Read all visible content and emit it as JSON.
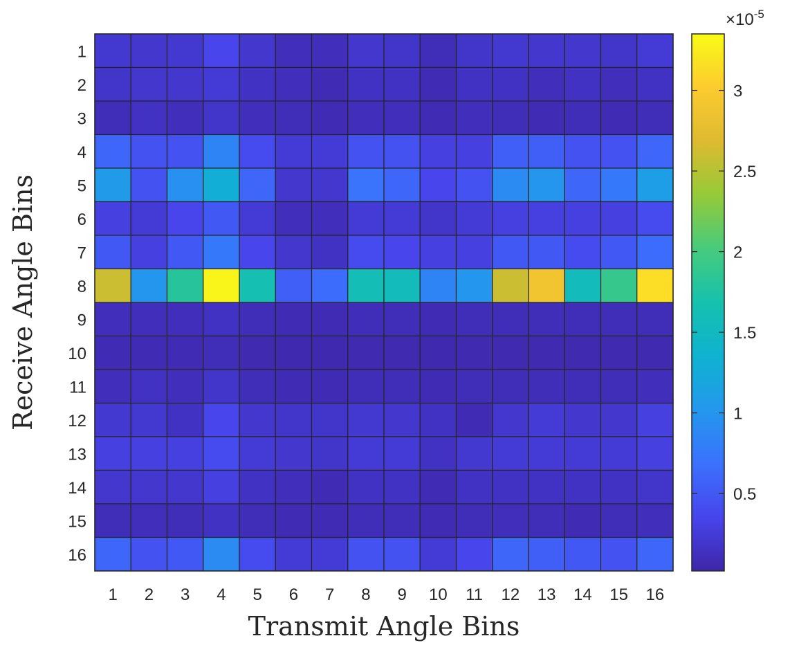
{
  "chart_data": {
    "type": "heatmap",
    "xlabel": "Transmit Angle Bins",
    "ylabel": "Receive Angle Bins",
    "x_categories": [
      "1",
      "2",
      "3",
      "4",
      "5",
      "6",
      "7",
      "8",
      "9",
      "10",
      "11",
      "12",
      "13",
      "14",
      "15",
      "16"
    ],
    "y_categories": [
      "1",
      "2",
      "3",
      "4",
      "5",
      "6",
      "7",
      "8",
      "9",
      "10",
      "11",
      "12",
      "13",
      "14",
      "15",
      "16"
    ],
    "values_scale_exponent": "-5",
    "colorbar": {
      "range": [
        0.02,
        3.35
      ],
      "ticks": [
        {
          "value": 0.5,
          "label": "0.5"
        },
        {
          "value": 1,
          "label": "1"
        },
        {
          "value": 1.5,
          "label": "1.5"
        },
        {
          "value": 2,
          "label": "2"
        },
        {
          "value": 2.5,
          "label": "2.5"
        },
        {
          "value": 3,
          "label": "3"
        }
      ]
    },
    "colormap": "parula",
    "values": [
      [
        0.22,
        0.2,
        0.22,
        0.35,
        0.2,
        0.12,
        0.12,
        0.2,
        0.18,
        0.1,
        0.18,
        0.22,
        0.2,
        0.2,
        0.18,
        0.25
      ],
      [
        0.18,
        0.2,
        0.2,
        0.25,
        0.15,
        0.12,
        0.08,
        0.15,
        0.15,
        0.08,
        0.15,
        0.15,
        0.12,
        0.15,
        0.12,
        0.15
      ],
      [
        0.1,
        0.15,
        0.12,
        0.18,
        0.12,
        0.1,
        0.08,
        0.12,
        0.12,
        0.08,
        0.12,
        0.1,
        0.08,
        0.1,
        0.08,
        0.1
      ],
      [
        0.6,
        0.45,
        0.45,
        0.85,
        0.4,
        0.25,
        0.25,
        0.45,
        0.45,
        0.3,
        0.3,
        0.55,
        0.55,
        0.45,
        0.45,
        0.6
      ],
      [
        1.05,
        0.45,
        0.95,
        1.3,
        0.6,
        0.2,
        0.2,
        0.7,
        0.6,
        0.35,
        0.45,
        0.9,
        1.0,
        0.6,
        0.75,
        1.1
      ],
      [
        0.3,
        0.25,
        0.35,
        0.5,
        0.25,
        0.12,
        0.12,
        0.25,
        0.25,
        0.18,
        0.25,
        0.3,
        0.3,
        0.3,
        0.3,
        0.4
      ],
      [
        0.5,
        0.3,
        0.5,
        0.75,
        0.35,
        0.2,
        0.15,
        0.4,
        0.35,
        0.3,
        0.3,
        0.5,
        0.5,
        0.4,
        0.5,
        0.65
      ],
      [
        2.6,
        1.0,
        1.8,
        3.3,
        1.65,
        0.55,
        0.65,
        1.6,
        1.55,
        0.85,
        1.0,
        2.6,
        2.9,
        1.55,
        1.9,
        3.15
      ],
      [
        0.12,
        0.12,
        0.12,
        0.15,
        0.1,
        0.08,
        0.08,
        0.1,
        0.1,
        0.08,
        0.1,
        0.1,
        0.1,
        0.1,
        0.1,
        0.1
      ],
      [
        0.08,
        0.08,
        0.08,
        0.1,
        0.06,
        0.05,
        0.05,
        0.06,
        0.06,
        0.05,
        0.06,
        0.06,
        0.06,
        0.06,
        0.06,
        0.06
      ],
      [
        0.12,
        0.15,
        0.12,
        0.18,
        0.1,
        0.08,
        0.08,
        0.1,
        0.1,
        0.08,
        0.1,
        0.1,
        0.1,
        0.1,
        0.1,
        0.12
      ],
      [
        0.22,
        0.22,
        0.15,
        0.35,
        0.2,
        0.18,
        0.18,
        0.22,
        0.2,
        0.15,
        0.08,
        0.2,
        0.25,
        0.2,
        0.2,
        0.3
      ],
      [
        0.3,
        0.3,
        0.3,
        0.4,
        0.25,
        0.2,
        0.18,
        0.25,
        0.25,
        0.15,
        0.22,
        0.25,
        0.25,
        0.25,
        0.25,
        0.3
      ],
      [
        0.2,
        0.2,
        0.2,
        0.3,
        0.15,
        0.12,
        0.08,
        0.15,
        0.15,
        0.08,
        0.15,
        0.15,
        0.15,
        0.15,
        0.15,
        0.18
      ],
      [
        0.1,
        0.12,
        0.1,
        0.15,
        0.1,
        0.08,
        0.08,
        0.1,
        0.1,
        0.08,
        0.1,
        0.12,
        0.1,
        0.08,
        0.1,
        0.12
      ],
      [
        0.6,
        0.45,
        0.5,
        0.9,
        0.4,
        0.25,
        0.25,
        0.45,
        0.45,
        0.25,
        0.35,
        0.6,
        0.55,
        0.5,
        0.45,
        0.6
      ]
    ]
  }
}
